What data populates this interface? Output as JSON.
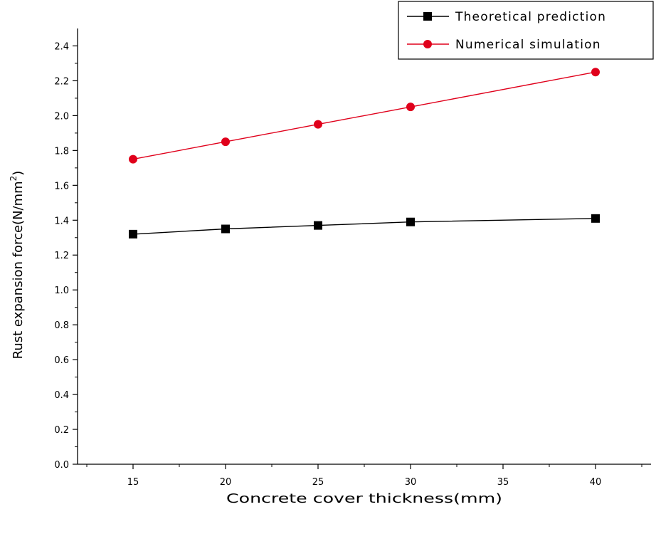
{
  "chart_data": {
    "type": "line",
    "xlabel": "Concrete cover thickness(mm)",
    "ylabel_main": "Rust expansion force(N/mm",
    "ylabel_sup": "2",
    "ylabel_close": ")",
    "xlim": [
      12,
      43
    ],
    "ylim": [
      0.0,
      2.5
    ],
    "x_ticks": [
      15,
      20,
      25,
      30,
      35,
      40
    ],
    "y_ticks": [
      0.0,
      0.2,
      0.4,
      0.6,
      0.8,
      1.0,
      1.2,
      1.4,
      1.6,
      1.8,
      2.0,
      2.2,
      2.4
    ],
    "grid": false,
    "legend_position": "top-right",
    "series": [
      {
        "name": "Theoretical prediction",
        "marker": "square",
        "color": "#000000",
        "x": [
          15,
          20,
          25,
          30,
          40
        ],
        "y": [
          1.32,
          1.35,
          1.37,
          1.39,
          1.41
        ]
      },
      {
        "name": "Numerical simulation",
        "marker": "circle",
        "color": "#e0001b",
        "x": [
          15,
          20,
          25,
          30,
          40
        ],
        "y": [
          1.75,
          1.85,
          1.95,
          2.05,
          2.25
        ]
      }
    ]
  }
}
